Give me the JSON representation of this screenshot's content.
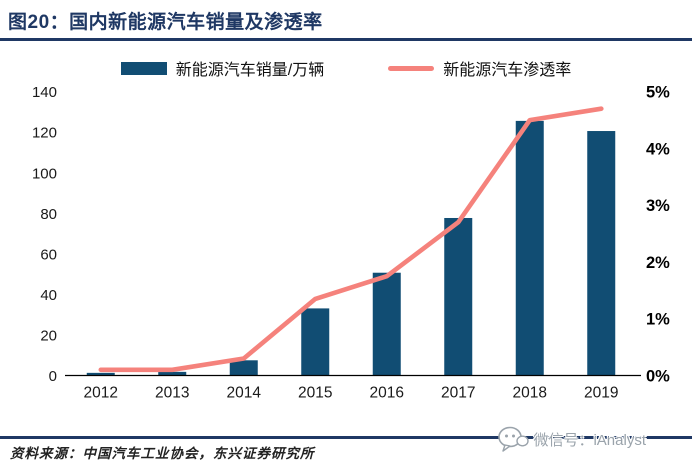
{
  "header": {
    "title": "图20：国内新能源汽车销量及渗透率"
  },
  "legend": [
    {
      "label": "新能源汽车销量/万辆",
      "swatch": "bar",
      "color": "#114D73"
    },
    {
      "label": "新能源汽车渗透率",
      "swatch": "line",
      "color": "#F5827C"
    }
  ],
  "chart_data": {
    "type": "bar",
    "subtype": "bar+line combo",
    "categories": [
      "2012",
      "2013",
      "2014",
      "2015",
      "2016",
      "2017",
      "2018",
      "2019"
    ],
    "series": [
      {
        "name": "新能源汽车销量/万辆",
        "type": "bar",
        "axis": "left",
        "color": "#114D73",
        "values": [
          1.3,
          1.8,
          7.5,
          33.1,
          50.7,
          77.7,
          125.6,
          120.6
        ]
      },
      {
        "name": "新能源汽车渗透率",
        "type": "line",
        "axis": "right",
        "color": "#F5827C",
        "values": [
          0.1,
          0.1,
          0.3,
          1.35,
          1.75,
          2.7,
          4.5,
          4.7
        ]
      }
    ],
    "left_axis": {
      "min": 0,
      "max": 140,
      "step": 20,
      "ticks": [
        "0",
        "20",
        "40",
        "60",
        "80",
        "100",
        "120",
        "140"
      ]
    },
    "right_axis": {
      "min": 0,
      "max": 5,
      "step": 1,
      "ticks": [
        "0%",
        "1%",
        "2%",
        "3%",
        "4%",
        "5%"
      ]
    },
    "grid": false,
    "legend_position": "top",
    "axis_line_color": "#000000"
  },
  "footer": {
    "source": "资料来源：中国汽车工业协会，东兴证券研究所"
  },
  "watermark": {
    "icon": "wechat-icon",
    "text": "微信号：iAnalyst"
  }
}
